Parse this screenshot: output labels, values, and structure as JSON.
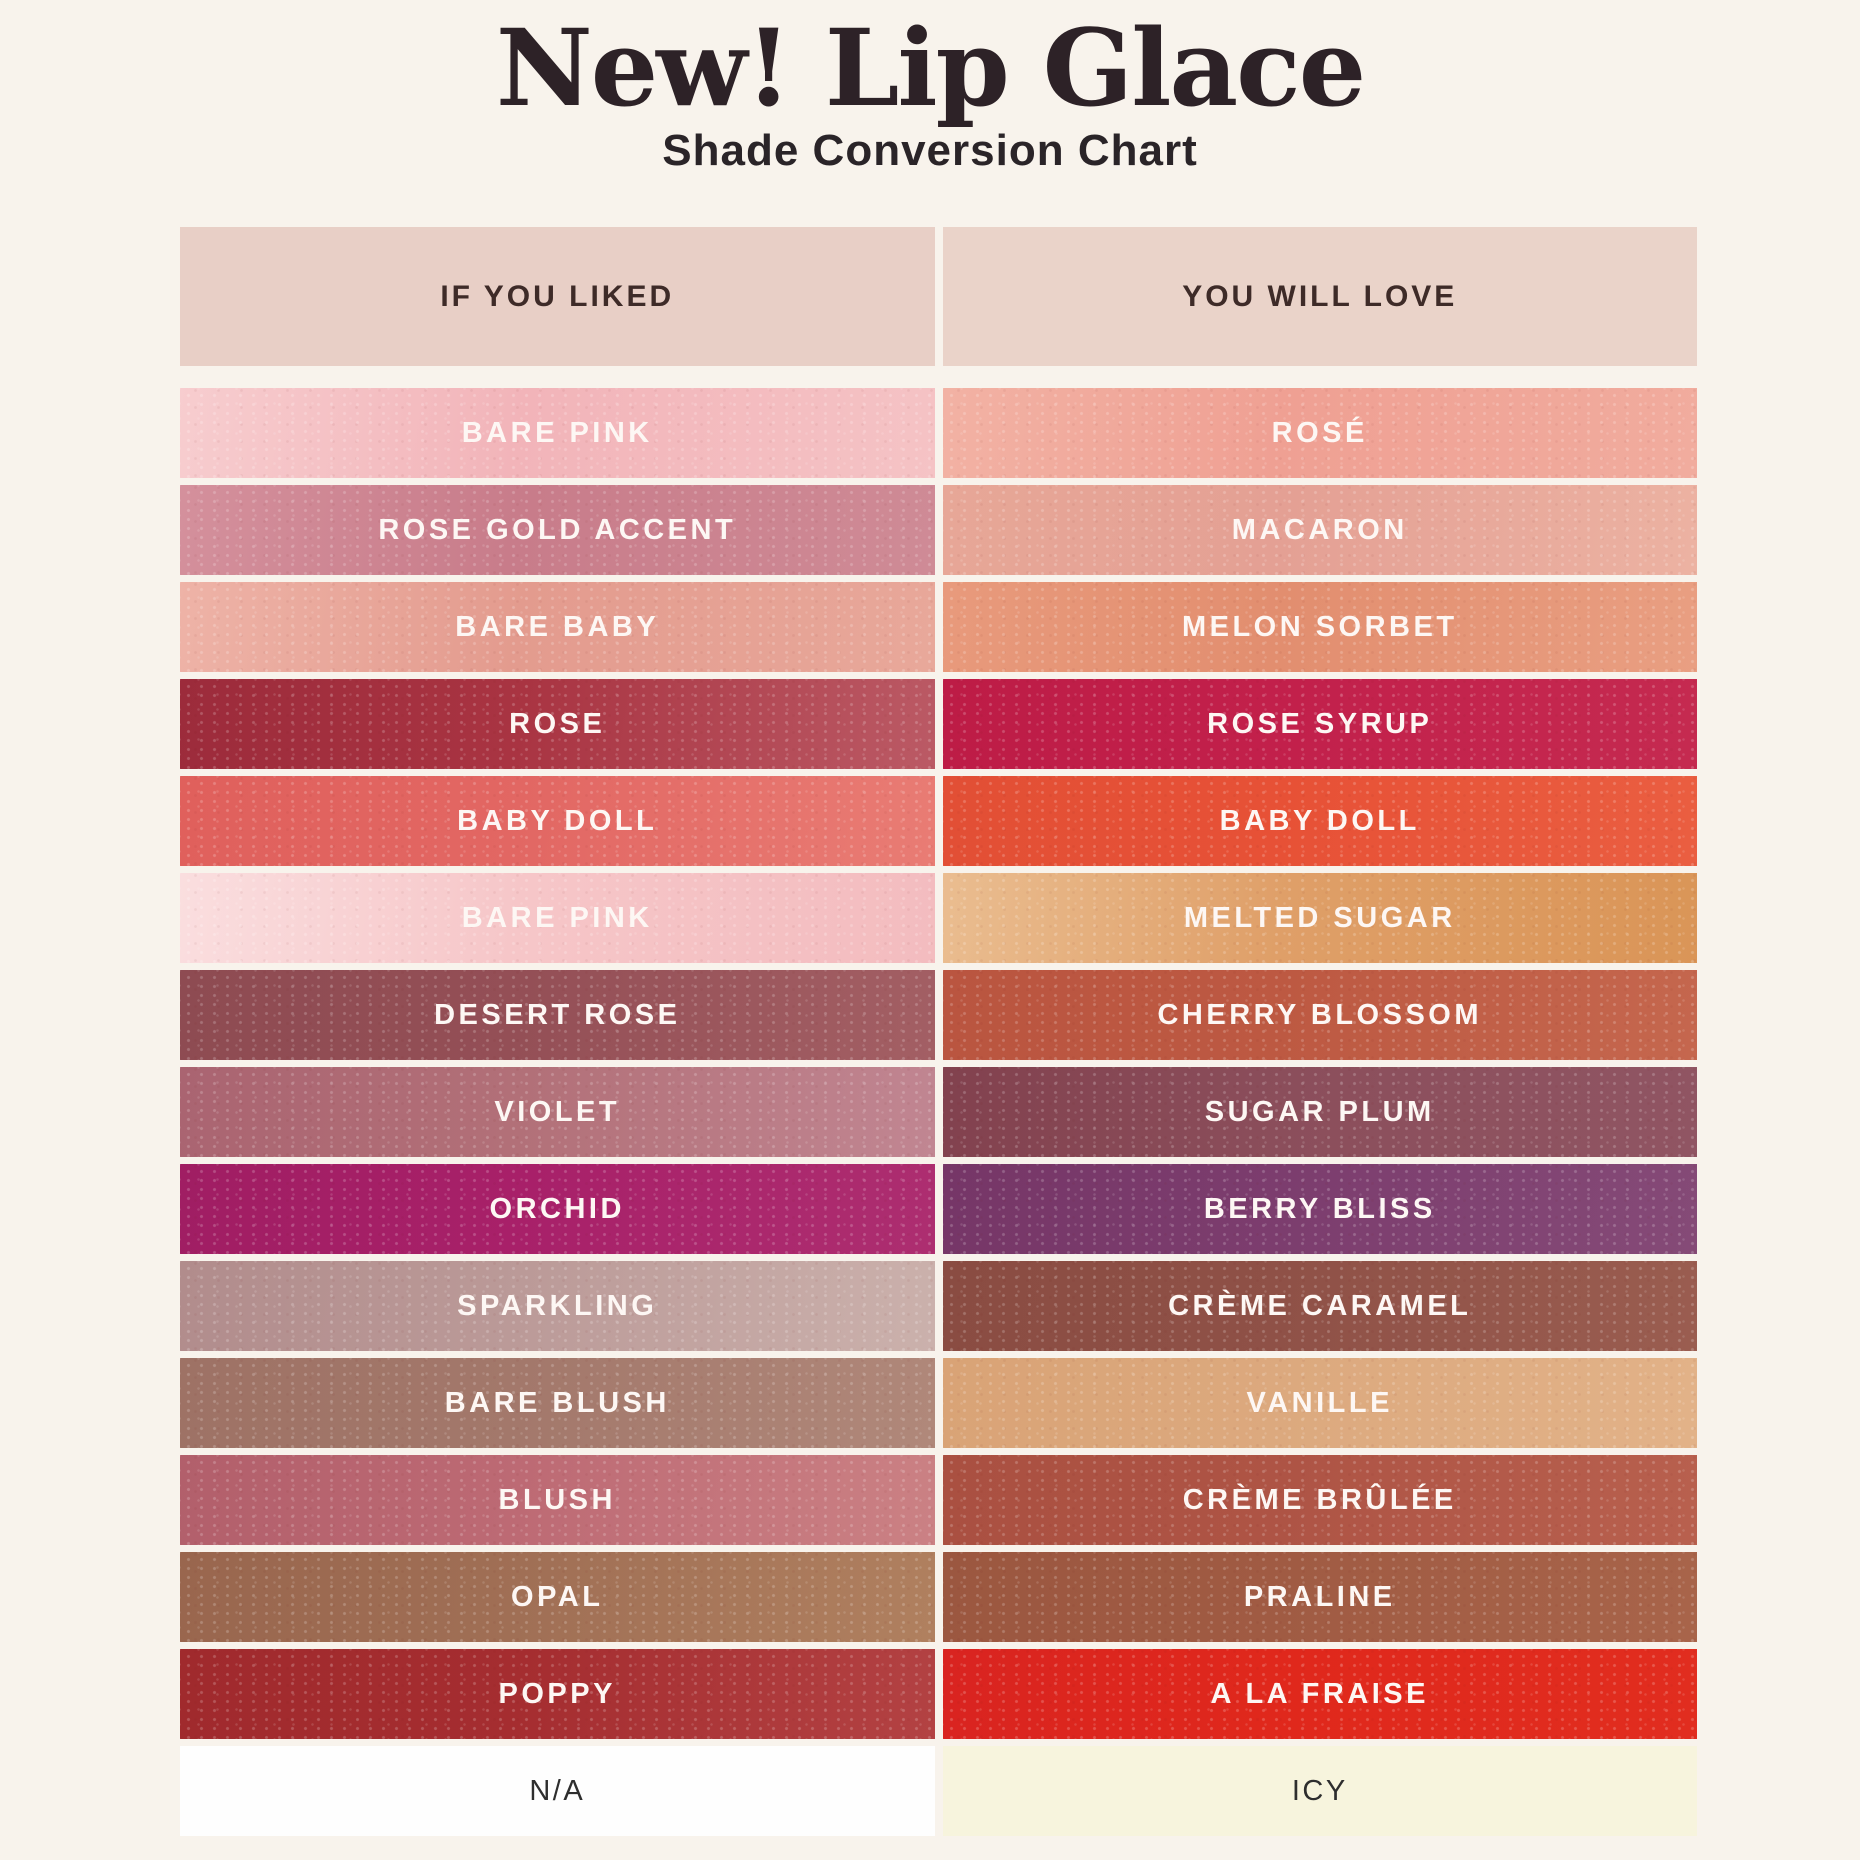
{
  "title": "New! Lip Glace",
  "subtitle": "Shade Conversion Chart",
  "header": {
    "liked_bg": "#e8cfc6",
    "love_bg": "#ead3c9",
    "text_color": "#3e2b28"
  },
  "colors": {
    "page_bg": "#f8f3ec",
    "title_color": "#2d2227",
    "swatch_label_color": "#fdf7f4",
    "plain_label_color": "#2e2e2e"
  },
  "chart_data": {
    "type": "table",
    "title": "New! Lip Glace",
    "subtitle": "Shade Conversion Chart",
    "columns": [
      "IF YOU LIKED",
      "YOU WILL LOVE"
    ],
    "rows": [
      {
        "liked": {
          "label": "BARE PINK",
          "colors": [
            "#f7cdcf",
            "#f2b4b9",
            "#f5c3c5"
          ]
        },
        "love": {
          "label": "ROSÉ",
          "colors": [
            "#f2b2a4",
            "#efa093",
            "#f1ac9e"
          ]
        }
      },
      {
        "liked": {
          "label": "ROSE GOLD ACCENT",
          "colors": [
            "#d4909c",
            "#c87c8a",
            "#cf8b96"
          ]
        },
        "love": {
          "label": "MACARON",
          "colors": [
            "#e7a797",
            "#e4a094",
            "#ecb2a2"
          ]
        }
      },
      {
        "liked": {
          "label": "BARE BABY",
          "colors": [
            "#eeb3a7",
            "#e39b8e",
            "#e8a89a"
          ]
        },
        "love": {
          "label": "MELON SORBET",
          "colors": [
            "#e89a7c",
            "#e28e6f",
            "#e99f82"
          ]
        }
      },
      {
        "liked": {
          "label": "ROSE",
          "colors": [
            "#9c2b3b",
            "#a93442",
            "#bb5a65"
          ]
        },
        "love": {
          "label": "ROSE SYRUP",
          "colors": [
            "#bd1c46",
            "#c2204b",
            "#c52a50"
          ]
        }
      },
      {
        "liked": {
          "label": "BABY DOLL",
          "colors": [
            "#e0605c",
            "#e26763",
            "#e97c74"
          ]
        },
        "love": {
          "label": "BABY DOLL",
          "colors": [
            "#e24f35",
            "#e75136",
            "#ea5e41"
          ]
        }
      },
      {
        "liked": {
          "label": "BARE PINK",
          "colors": [
            "#fadedf",
            "#f6c6c8",
            "#f3bcbf"
          ]
        },
        "love": {
          "label": "MELTED SUGAR",
          "colors": [
            "#eabd90",
            "#df9f68",
            "#da9557"
          ]
        }
      },
      {
        "liked": {
          "label": "DESERT ROSE",
          "colors": [
            "#8e4b52",
            "#944f56",
            "#a35f64"
          ]
        },
        "love": {
          "label": "CHERRY BLOSSOM",
          "colors": [
            "#ba5540",
            "#bd5942",
            "#c5674e"
          ]
        }
      },
      {
        "liked": {
          "label": "VIOLET",
          "colors": [
            "#aa6471",
            "#b27078",
            "#c18692"
          ]
        },
        "love": {
          "label": "SUGAR PLUM",
          "colors": [
            "#82414e",
            "#8b4e5b",
            "#905563"
          ]
        }
      },
      {
        "liked": {
          "label": "ORCHID",
          "colors": [
            "#a01e63",
            "#a82069",
            "#ad2e70"
          ]
        },
        "love": {
          "label": "BERRY BLISS",
          "colors": [
            "#763667",
            "#7c3d6e",
            "#854a77"
          ]
        }
      },
      {
        "liked": {
          "label": "SPARKLING",
          "colors": [
            "#b18c8c",
            "#bb9a98",
            "#cbb1ac"
          ]
        },
        "love": {
          "label": "CRÈME CARAMEL",
          "colors": [
            "#8a4c42",
            "#8f5147",
            "#9a5d50"
          ]
        }
      },
      {
        "liked": {
          "label": "BARE BLUSH",
          "colors": [
            "#9e7265",
            "#a3786b",
            "#b0887a"
          ]
        },
        "love": {
          "label": "VANILLE",
          "colors": [
            "#d9a376",
            "#dca97e",
            "#e2b288"
          ]
        }
      },
      {
        "liked": {
          "label": "BLUSH",
          "colors": [
            "#b25f6b",
            "#bd6a74",
            "#cb8184"
          ]
        },
        "love": {
          "label": "CRÈME BRÛLÉE",
          "colors": [
            "#aa5041",
            "#ae5445",
            "#b8604e"
          ]
        }
      },
      {
        "liked": {
          "label": "OPAL",
          "colors": [
            "#99664e",
            "#a06f55",
            "#b0805f"
          ]
        },
        "love": {
          "label": "PRALINE",
          "colors": [
            "#9b5740",
            "#a05b43",
            "#a8644a"
          ]
        }
      },
      {
        "liked": {
          "label": "POPPY",
          "colors": [
            "#a02a2d",
            "#a52d30",
            "#b34243"
          ]
        },
        "love": {
          "label": "A LA FRAISE",
          "colors": [
            "#d92420",
            "#e0281c",
            "#e12d1f"
          ]
        }
      },
      {
        "liked": {
          "label": "N/A",
          "colors": [
            "#fefefe"
          ],
          "plain": true,
          "dark": true
        },
        "love": {
          "label": "ICY",
          "colors": [
            "#f7f4dd"
          ],
          "plain": true,
          "dark": true
        }
      }
    ]
  }
}
